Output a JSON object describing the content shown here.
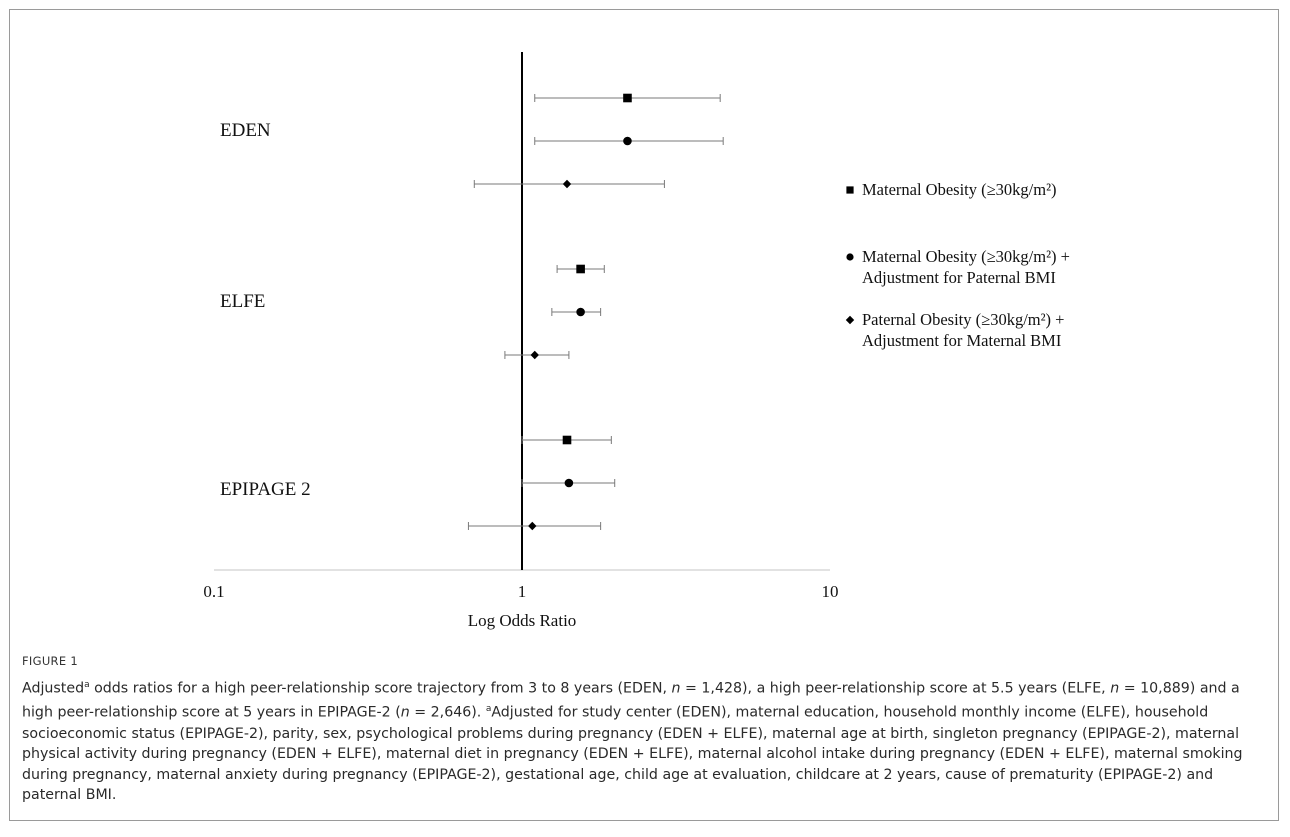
{
  "chart_data": {
    "type": "scatter",
    "subtype": "forest-plot",
    "xscale": "log",
    "xlim": [
      0.1,
      10
    ],
    "xticks": [
      "0.1",
      "1",
      "10"
    ],
    "xlabel": "Log Odds Ratio",
    "reference_line": 1,
    "grid": false,
    "legend_position": "right",
    "groups": [
      "EDEN",
      "ELFE",
      "EPIPAGE 2"
    ],
    "series": [
      {
        "name": "Maternal Obesity (≥30kg/m²)",
        "marker": "square",
        "points": [
          {
            "group": "EDEN",
            "or": 2.2,
            "lo": 1.1,
            "hi": 4.4
          },
          {
            "group": "ELFE",
            "or": 1.55,
            "lo": 1.3,
            "hi": 1.85
          },
          {
            "group": "EPIPAGE 2",
            "or": 1.4,
            "lo": 1.0,
            "hi": 1.95
          }
        ]
      },
      {
        "name": "Maternal Obesity (≥30kg/m²) + Adjustment for Paternal BMI",
        "marker": "circle",
        "points": [
          {
            "group": "EDEN",
            "or": 2.2,
            "lo": 1.1,
            "hi": 4.5
          },
          {
            "group": "ELFE",
            "or": 1.55,
            "lo": 1.25,
            "hi": 1.8
          },
          {
            "group": "EPIPAGE 2",
            "or": 1.42,
            "lo": 1.0,
            "hi": 2.0
          }
        ]
      },
      {
        "name": "Paternal Obesity (≥30kg/m²) + Adjustment for Maternal BMI",
        "marker": "diamond",
        "points": [
          {
            "group": "EDEN",
            "or": 1.4,
            "lo": 0.7,
            "hi": 2.9
          },
          {
            "group": "ELFE",
            "or": 1.1,
            "lo": 0.88,
            "hi": 1.42
          },
          {
            "group": "EPIPAGE 2",
            "or": 1.08,
            "lo": 0.67,
            "hi": 1.8
          }
        ]
      }
    ],
    "legend": [
      {
        "marker": "square",
        "lines": [
          "Maternal Obesity (≥30kg/m²)"
        ]
      },
      {
        "marker": "circle",
        "lines": [
          "Maternal Obesity (≥30kg/m²) +",
          "Adjustment for Paternal BMI"
        ]
      },
      {
        "marker": "diamond",
        "lines": [
          "Paternal Obesity (≥30kg/m²) +",
          "Adjustment for Maternal BMI"
        ]
      }
    ]
  },
  "caption": {
    "label": "FIGURE 1",
    "html": "Adjusted<sup>a</sup> odds ratios for a high peer-relationship score trajectory from 3 to 8 years (EDEN, <i>n</i> = 1,428), a high peer-relationship score at 5.5 years (ELFE, <i>n</i> = 10,889) and a high peer-relationship score at 5 years in EPIPAGE-2 (<i>n</i> = 2,646). <sup>a</sup>Adjusted for study center (EDEN), maternal education, household monthly income (ELFE), household socioeconomic status (EPIPAGE-2), parity, sex, psychological problems during pregnancy (EDEN + ELFE), maternal age at birth, singleton pregnancy (EPIPAGE-2), maternal physical activity during pregnancy (EDEN + ELFE), maternal diet in pregnancy (EDEN + ELFE), maternal alcohol intake during pregnancy (EDEN + ELFE), maternal smoking during pregnancy, maternal anxiety during pregnancy (EPIPAGE-2), gestational age, child age at evaluation, childcare at 2 years, cause of prematurity (EPIPAGE-2) and paternal BMI."
  }
}
